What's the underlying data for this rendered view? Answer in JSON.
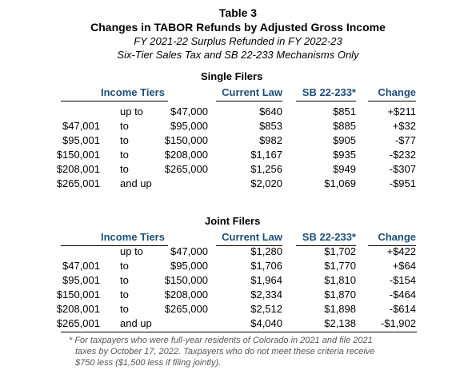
{
  "header": {
    "table_number": "Table 3",
    "title": "Changes in TABOR Refunds by Adjusted Gross Income",
    "subtitle_1": "FY 2021-22 Surplus Refunded in FY 2022-23",
    "subtitle_2": "Six-Tier Sales Tax and SB 22-233 Mechanisms Only"
  },
  "single": {
    "heading": "Single Filers",
    "columns": {
      "income_tiers": "Income Tiers",
      "current_law": "Current Law",
      "sb": "SB 22-233*",
      "change": "Change"
    },
    "rows": [
      {
        "low": "",
        "sep": "up to",
        "high": "$47,000",
        "current": "$640",
        "sb": "$851",
        "change": "+$211"
      },
      {
        "low": "$47,001",
        "sep": "to",
        "high": "$95,000",
        "current": "$853",
        "sb": "$885",
        "change": "+$32"
      },
      {
        "low": "$95,001",
        "sep": "to",
        "high": "$150,000",
        "current": "$982",
        "sb": "$905",
        "change": "-$77"
      },
      {
        "low": "$150,001",
        "sep": "to",
        "high": "$208,000",
        "current": "$1,167",
        "sb": "$935",
        "change": "-$232"
      },
      {
        "low": "$208,001",
        "sep": "to",
        "high": "$265,000",
        "current": "$1,256",
        "sb": "$949",
        "change": "-$307"
      },
      {
        "low": "$265,001",
        "sep": "and up",
        "high": "",
        "current": "$2,020",
        "sb": "$1,069",
        "change": "-$951"
      }
    ]
  },
  "joint": {
    "heading": "Joint Filers",
    "columns": {
      "income_tiers": "Income Tiers",
      "current_law": "Current Law",
      "sb": "SB 22-233*",
      "change": "Change"
    },
    "rows": [
      {
        "low": "",
        "sep": "up to",
        "high": "$47,000",
        "current": "$1,280",
        "sb": "$1,702",
        "change": "+$422"
      },
      {
        "low": "$47,001",
        "sep": "to",
        "high": "$95,000",
        "current": "$1,706",
        "sb": "$1,770",
        "change": "+$64"
      },
      {
        "low": "$95,001",
        "sep": "to",
        "high": "$150,000",
        "current": "$1,964",
        "sb": "$1,810",
        "change": "-$154"
      },
      {
        "low": "$150,001",
        "sep": "to",
        "high": "$208,000",
        "current": "$2,334",
        "sb": "$1,870",
        "change": "-$464"
      },
      {
        "low": "$208,001",
        "sep": "to",
        "high": "$265,000",
        "current": "$2,512",
        "sb": "$1,898",
        "change": "-$614"
      },
      {
        "low": "$265,001",
        "sep": "and up",
        "high": "",
        "current": "$4,040",
        "sb": "$2,138",
        "change": "-$1,902"
      }
    ]
  },
  "footnote": {
    "line_1": "* For taxpayers who were full-year residents of Colorado in 2021 and file 2021",
    "line_2": "taxes by October 17, 2022. Taxpayers who do not meet these criteria receive",
    "line_3": "$750 less ($1,500 less if filing jointly)."
  }
}
